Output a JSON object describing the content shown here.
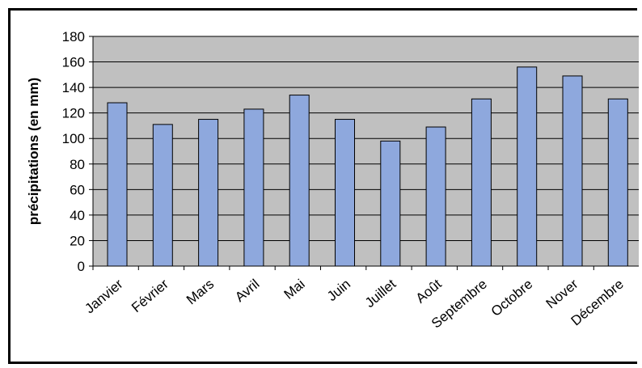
{
  "chart_data": {
    "type": "bar",
    "title": "",
    "xlabel": "",
    "ylabel": "précipitations (en mm)",
    "categories": [
      "Janvier",
      "Février",
      "Mars",
      "Avril",
      "Mai",
      "Juin",
      "Juillet",
      "Août",
      "Septembre",
      "Octobre",
      "Novembre",
      "Décembre"
    ],
    "category_labels_shown": [
      "Janvier",
      "Février",
      "Mars",
      "Avril",
      "Mai",
      "Juin",
      "Juillet",
      "Août",
      "Septembre",
      "Octobre",
      "Nover",
      "Décembre"
    ],
    "values": [
      128,
      111,
      115,
      123,
      134,
      115,
      98,
      109,
      131,
      156,
      149,
      131
    ],
    "ylim": [
      0,
      180
    ],
    "yticks": [
      0,
      20,
      40,
      60,
      80,
      100,
      120,
      140,
      160,
      180
    ],
    "grid": true,
    "legend": "none",
    "colors": {
      "bar_fill": "#8ea8dd",
      "bar_stroke": "#000000",
      "plot_background": "#c0c0c0",
      "gridline": "#000000"
    }
  }
}
